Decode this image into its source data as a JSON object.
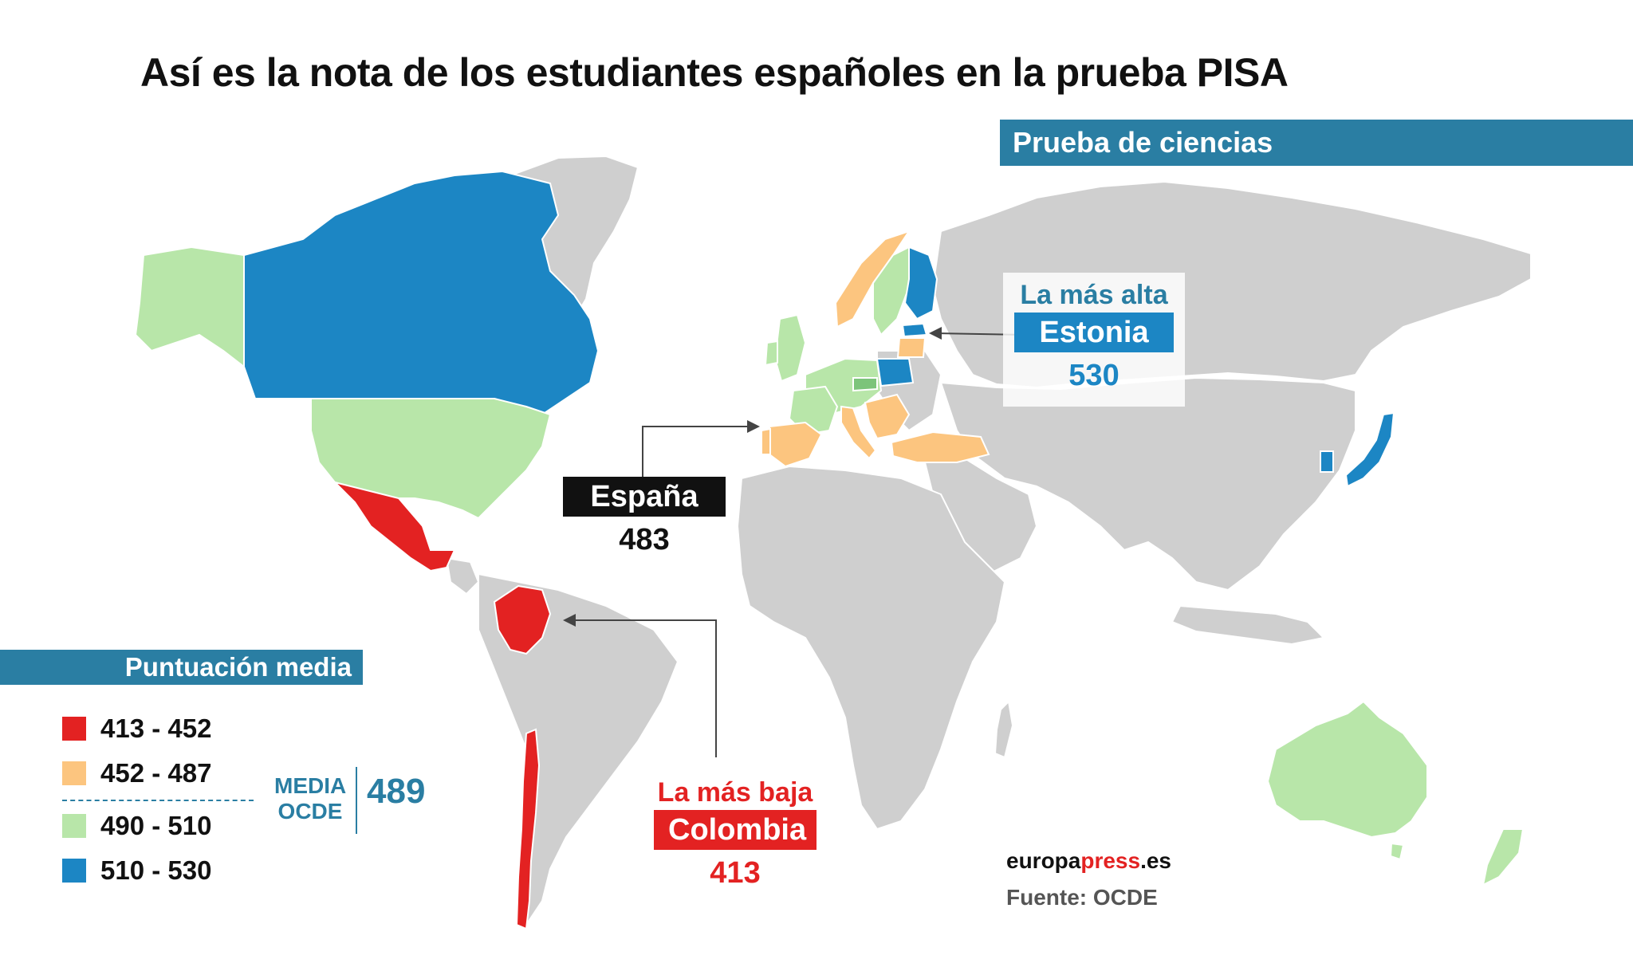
{
  "title": "Así es la nota de los estudiantes españoles en la prueba PISA",
  "subtitle": "Prueba de ciencias",
  "colors": {
    "red": "#e32222",
    "orange": "#fcc57f",
    "green": "#b8e6a9",
    "blue": "#1c86c4",
    "gray": "#cfcfcf",
    "accent": "#2a7ea3"
  },
  "legend": {
    "title": "Puntuación media",
    "items": [
      {
        "label": "413 - 452",
        "color": "#e32222"
      },
      {
        "label": "452 - 487",
        "color": "#fcc57f"
      },
      {
        "label": "490 - 510",
        "color": "#b8e6a9"
      },
      {
        "label": "510 - 530",
        "color": "#1c86c4"
      }
    ],
    "ocde_label_line1": "MEDIA",
    "ocde_label_line2": "OCDE",
    "ocde_value": "489"
  },
  "callouts": {
    "highest": {
      "label": "La más alta",
      "country": "Estonia",
      "score": "530"
    },
    "spain": {
      "country": "España",
      "score": "483"
    },
    "lowest": {
      "label": "La más baja",
      "country": "Colombia",
      "score": "413"
    }
  },
  "footer": {
    "brand_a": "europa",
    "brand_b": "press",
    "brand_c": ".es",
    "source": "Fuente: OCDE"
  }
}
